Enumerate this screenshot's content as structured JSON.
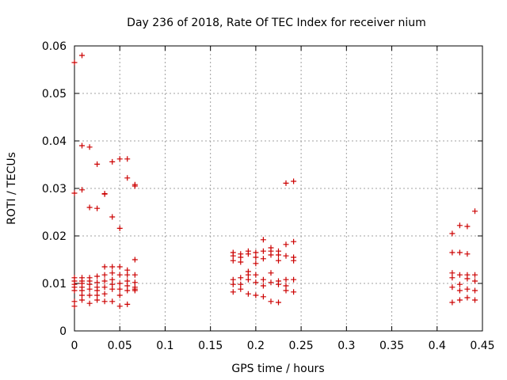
{
  "chart_data": {
    "type": "scatter",
    "title": "Day 236 of 2018, Rate Of TEC Index for receiver nium",
    "xlabel": "GPS time / hours",
    "ylabel": "ROTI / TECUs",
    "xlim": [
      0,
      0.45
    ],
    "ylim": [
      0,
      0.06
    ],
    "x_ticks": [
      "0",
      "0.05",
      "0.1",
      "0.15",
      "0.2",
      "0.25",
      "0.3",
      "0.35",
      "0.4",
      "0.45"
    ],
    "y_ticks": [
      "0",
      "0.01",
      "0.02",
      "0.03",
      "0.04",
      "0.05",
      "0.06"
    ],
    "grid": true,
    "marker": "plus",
    "color": "#cc0000",
    "x": [
      0.0,
      0.0,
      0.0,
      0.0,
      0.0,
      0.0,
      0.0,
      0.0,
      0.0,
      0.0083,
      0.0083,
      0.0083,
      0.0083,
      0.0083,
      0.0083,
      0.0083,
      0.0083,
      0.0083,
      0.0083,
      0.0167,
      0.0167,
      0.0167,
      0.0167,
      0.0167,
      0.0167,
      0.0167,
      0.0167,
      0.025,
      0.025,
      0.025,
      0.025,
      0.025,
      0.025,
      0.025,
      0.025,
      0.0333,
      0.0333,
      0.0333,
      0.0333,
      0.0333,
      0.0333,
      0.0333,
      0.0333,
      0.0417,
      0.0417,
      0.0417,
      0.0417,
      0.0417,
      0.0417,
      0.0417,
      0.0417,
      0.05,
      0.05,
      0.05,
      0.05,
      0.05,
      0.05,
      0.05,
      0.05,
      0.0583,
      0.0583,
      0.0583,
      0.0583,
      0.0583,
      0.0583,
      0.0583,
      0.0583,
      0.0667,
      0.0667,
      0.0667,
      0.0667,
      0.0667,
      0.0667,
      0.0667,
      0.0667,
      0.175,
      0.175,
      0.175,
      0.175,
      0.175,
      0.175,
      0.1833,
      0.1833,
      0.1833,
      0.1833,
      0.1833,
      0.1833,
      0.1917,
      0.1917,
      0.1917,
      0.1917,
      0.1917,
      0.1917,
      0.2,
      0.2,
      0.2,
      0.2,
      0.2,
      0.2,
      0.2083,
      0.2083,
      0.2083,
      0.2083,
      0.2083,
      0.2083,
      0.2167,
      0.2167,
      0.2167,
      0.2167,
      0.2167,
      0.2167,
      0.225,
      0.225,
      0.225,
      0.225,
      0.225,
      0.225,
      0.2333,
      0.2333,
      0.2333,
      0.2333,
      0.2333,
      0.2333,
      0.2417,
      0.2417,
      0.2417,
      0.2417,
      0.2417,
      0.2417,
      0.4167,
      0.4167,
      0.4167,
      0.4167,
      0.4167,
      0.4167,
      0.425,
      0.425,
      0.425,
      0.425,
      0.425,
      0.425,
      0.4333,
      0.4333,
      0.4333,
      0.4333,
      0.4333,
      0.4333,
      0.4417,
      0.4417,
      0.4417,
      0.4417,
      0.4417
    ],
    "y": [
      0.0565,
      0.029,
      0.0112,
      0.0105,
      0.0098,
      0.0092,
      0.0085,
      0.0062,
      0.0052,
      0.058,
      0.039,
      0.0297,
      0.0112,
      0.0105,
      0.01,
      0.0092,
      0.0085,
      0.0075,
      0.0065,
      0.0387,
      0.026,
      0.0112,
      0.0105,
      0.0098,
      0.0088,
      0.0075,
      0.0058,
      0.0351,
      0.0258,
      0.0115,
      0.0102,
      0.0092,
      0.0085,
      0.0075,
      0.0065,
      0.0289,
      0.0288,
      0.0135,
      0.0118,
      0.0105,
      0.0092,
      0.0078,
      0.0062,
      0.0356,
      0.024,
      0.0135,
      0.0122,
      0.0108,
      0.0098,
      0.0088,
      0.0062,
      0.0362,
      0.0216,
      0.0135,
      0.0118,
      0.01,
      0.0088,
      0.0075,
      0.0052,
      0.0362,
      0.0322,
      0.0128,
      0.0118,
      0.0105,
      0.0095,
      0.0085,
      0.0056,
      0.0308,
      0.0305,
      0.015,
      0.0118,
      0.0102,
      0.0092,
      0.0088,
      0.0085,
      0.0165,
      0.0158,
      0.0148,
      0.0108,
      0.0098,
      0.0082,
      0.0162,
      0.0155,
      0.0145,
      0.0112,
      0.0098,
      0.0088,
      0.0168,
      0.0162,
      0.0125,
      0.0118,
      0.0108,
      0.0078,
      0.0165,
      0.0155,
      0.0142,
      0.0118,
      0.0102,
      0.0075,
      0.0192,
      0.0168,
      0.0152,
      0.0108,
      0.0095,
      0.0072,
      0.0175,
      0.0168,
      0.016,
      0.0122,
      0.0102,
      0.0062,
      0.0168,
      0.016,
      0.0148,
      0.0105,
      0.0098,
      0.006,
      0.0311,
      0.0182,
      0.0158,
      0.0108,
      0.0095,
      0.0085,
      0.0315,
      0.0188,
      0.0155,
      0.0148,
      0.0108,
      0.0082,
      0.0205,
      0.0165,
      0.0122,
      0.0112,
      0.0092,
      0.006,
      0.0222,
      0.0165,
      0.0118,
      0.0098,
      0.0085,
      0.0065,
      0.022,
      0.0162,
      0.0118,
      0.011,
      0.0088,
      0.007,
      0.0252,
      0.0118,
      0.0105,
      0.0085,
      0.0065
    ]
  }
}
